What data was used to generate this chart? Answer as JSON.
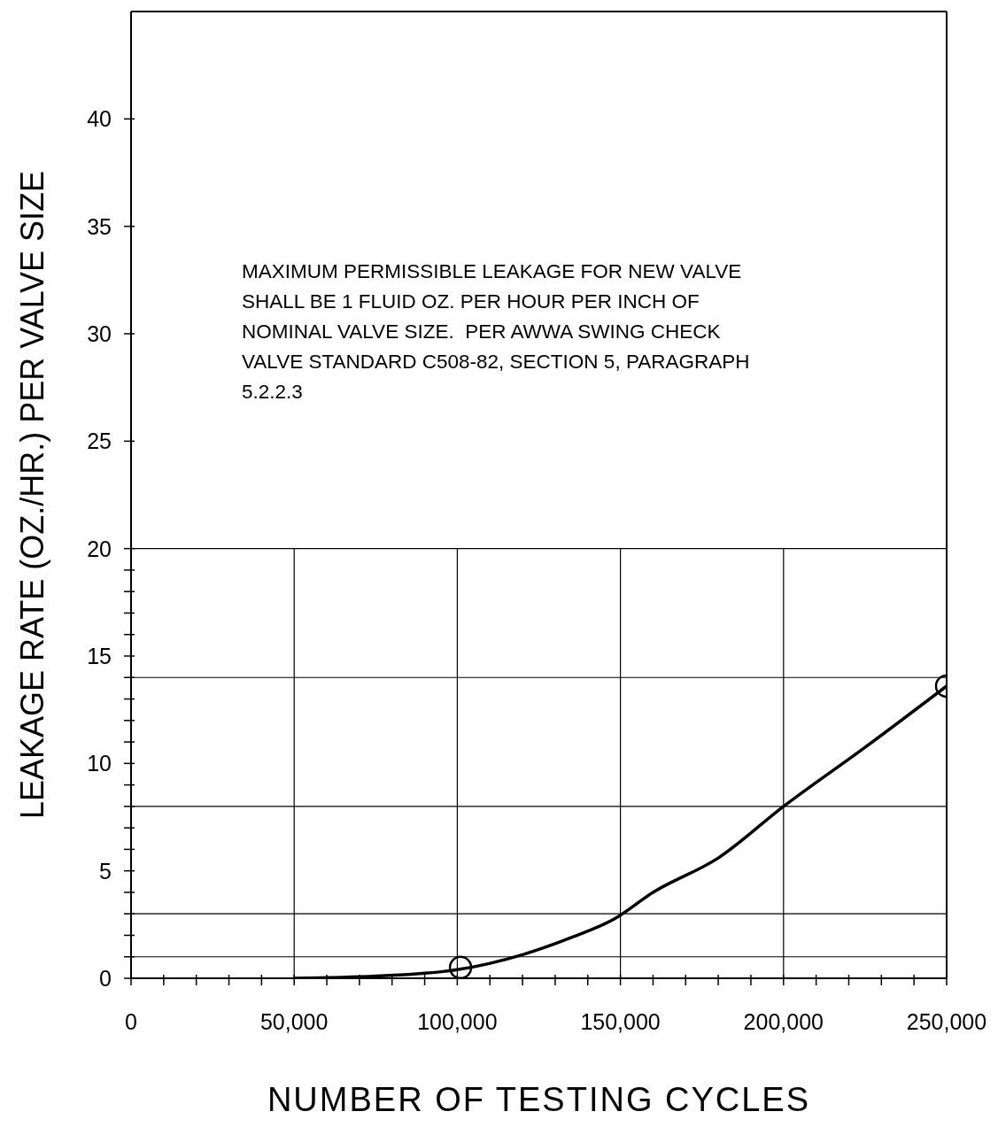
{
  "chart_data": {
    "type": "line",
    "xlabel": "NUMBER OF TESTING CYCLES",
    "ylabel": "LEAKAGE RATE (OZ./HR.) PER VALVE SIZE",
    "annotations": [
      "MAXIMUM PERMISSIBLE LEAKAGE FOR NEW VALVE\nSHALL BE 1 FLUID OZ. PER HOUR PER INCH OF\nNOMINAL VALVE SIZE.  PER AWWA SWING CHECK\nVALVE STANDARD C508-82, SECTION 5, PARAGRAPH\n5.2.2.3"
    ],
    "xlim": [
      0,
      250000
    ],
    "xticks": [
      0,
      {
        "value": 10000,
        "label": null
      },
      {
        "value": 20000,
        "label": null
      },
      {
        "value": 30000,
        "label": null
      },
      {
        "value": 40000,
        "label": null
      },
      {
        "value": 50000,
        "label": "50,000"
      },
      {
        "value": 60000,
        "label": null
      },
      {
        "value": 70000,
        "label": null
      },
      {
        "value": 80000,
        "label": null
      },
      {
        "value": 90000,
        "label": null
      },
      {
        "value": 100000,
        "label": "100,000"
      },
      {
        "value": 110000,
        "label": null
      },
      {
        "value": 120000,
        "label": null
      },
      {
        "value": 130000,
        "label": null
      },
      {
        "value": 140000,
        "label": null
      },
      {
        "value": 150000,
        "label": "150,000"
      },
      {
        "value": 160000,
        "label": null
      },
      {
        "value": 170000,
        "label": null
      },
      {
        "value": 180000,
        "label": null
      },
      {
        "value": 190000,
        "label": null
      },
      {
        "value": 200000,
        "label": "200,000"
      },
      {
        "value": 210000,
        "label": null
      },
      {
        "value": 220000,
        "label": null
      },
      {
        "value": 230000,
        "label": null
      },
      {
        "value": 240000,
        "label": null
      },
      {
        "value": 250000,
        "label": "250,000"
      }
    ],
    "ylim": [
      0,
      45
    ],
    "yticks": [
      0,
      {
        "value": 1,
        "label": null
      },
      {
        "value": 2,
        "label": null
      },
      {
        "value": 3,
        "label": null
      },
      {
        "value": 4,
        "label": null
      },
      5,
      {
        "value": 6,
        "label": null
      },
      {
        "value": 7,
        "label": null
      },
      {
        "value": 8,
        "label": null
      },
      {
        "value": 9,
        "label": null
      },
      10,
      {
        "value": 11,
        "label": null
      },
      {
        "value": 12,
        "label": null
      },
      {
        "value": 13,
        "label": null
      },
      {
        "value": 14,
        "label": null
      },
      15,
      {
        "value": 16,
        "label": null
      },
      {
        "value": 17,
        "label": null
      },
      {
        "value": 18,
        "label": null
      },
      {
        "value": 19,
        "label": null
      },
      20,
      25,
      30,
      35,
      40
    ],
    "ref_lines": [
      {
        "axis": "y",
        "value": 1
      },
      {
        "axis": "y",
        "value": 3
      },
      {
        "axis": "y",
        "value": 8
      },
      {
        "axis": "y",
        "value": 14
      },
      {
        "axis": "y",
        "value": 20
      },
      {
        "axis": "x",
        "value": 50000
      },
      {
        "axis": "x",
        "value": 100000
      },
      {
        "axis": "x",
        "value": 150000
      },
      {
        "axis": "x",
        "value": 200000
      }
    ],
    "series": [
      {
        "color": "#000000",
        "marker": "none",
        "x": [
          50000,
          75000,
          100000,
          120000,
          135000,
          148000,
          160000,
          180000,
          200000,
          225000,
          250000
        ],
        "values": [
          0,
          0.1,
          0.4,
          1.1,
          1.9,
          2.75,
          4.0,
          5.6,
          8.0,
          10.75,
          13.6
        ]
      },
      {
        "type": "scatter",
        "color": "#000000",
        "marker": "circle",
        "x": [
          101000,
          250000
        ],
        "values": [
          0.5,
          13.6
        ]
      }
    ]
  }
}
